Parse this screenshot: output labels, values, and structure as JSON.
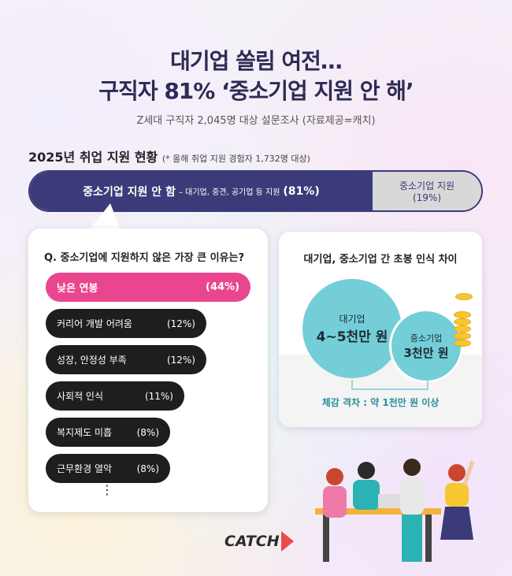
{
  "header": {
    "title_line1": "대기업 쏠림 여전…",
    "title_line2": "구직자 81% ‘중소기업 지원 안 해’",
    "subtitle": "Z세대 구직자 2,045명 대상 설문조사 (자료제공=캐치)"
  },
  "section": {
    "title": "2025년 취업 지원 현황",
    "note": "(* 올해 취업 지원 경험자 1,732명 대상)"
  },
  "overall_bar": {
    "main_label": "중소기업 지원 안 함",
    "main_detail": "– 대기업, 중견, 공기업 등 지원",
    "main_pct": "(81%)",
    "other_label": "중소기업 지원",
    "other_pct": "(19%)"
  },
  "reasons": {
    "question": "Q. 중소기업에 지원하지 않은 가장 큰 이유는?",
    "more": "⋮"
  },
  "salary": {
    "title": "대기업, 중소기업 간 초봉 인식 차이",
    "large_label": "대기업",
    "large_value": "4~5천만 원",
    "small_label": "중소기업",
    "small_value": "3천만 원",
    "gap": "체감 격차 : 약 1천만 원 이상"
  },
  "brand": {
    "logo": "CATCH"
  },
  "colors": {
    "navy": "#3b3b79",
    "pink": "#ea4690",
    "teal": "#74ced8",
    "gap_text": "#2a8f9c"
  },
  "chart_data": [
    {
      "type": "bar",
      "orientation": "horizontal-stacked",
      "categories": [
        "중소기업 지원 안 함",
        "중소기업 지원"
      ],
      "values": [
        81,
        19
      ],
      "unit": "%"
    },
    {
      "type": "bar",
      "orientation": "horizontal",
      "categories": [
        "낮은 연봉",
        "커리어 개발 어려움",
        "성장, 안정성 부족",
        "사회적 인식",
        "복지제도 미흡",
        "근무환경 열악"
      ],
      "values": [
        44,
        12,
        12,
        11,
        8,
        8
      ],
      "labels": [
        "(44%)",
        "(12%)",
        "(12%)",
        "(11%)",
        "(8%)",
        "(8%)"
      ],
      "unit": "%"
    }
  ]
}
